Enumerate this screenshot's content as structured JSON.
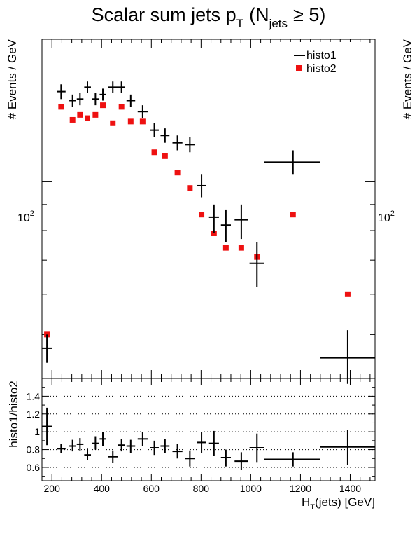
{
  "chart_data": [
    {
      "type": "scatter",
      "title": "Scalar sum jets p",
      "title_sub": "T",
      "title_paren_open": "(N",
      "title_paren_sub": "jets",
      "title_cond": "≥ 5)",
      "ylabel": "# Events / GeV",
      "ylabel_right": "# Events / GeV",
      "yscale": "log",
      "xlim": [
        160,
        1500
      ],
      "ylim": [
        41,
        190
      ],
      "ytick_labels": [
        {
          "value": 100,
          "base": "10",
          "exp": "2"
        }
      ],
      "legend": {
        "position": "top-right"
      },
      "series": [
        {
          "name": "histo1",
          "style": "errorbar-cross",
          "color": "#000000",
          "points": [
            {
              "x": 180,
              "xlo": 160,
              "xhi": 200,
              "y": 47,
              "ylo": 44,
              "yhi": 50
            },
            {
              "x": 237,
              "xlo": 220,
              "xhi": 255,
              "y": 150,
              "ylo": 145,
              "yhi": 155
            },
            {
              "x": 283,
              "xlo": 270,
              "xhi": 297,
              "y": 144,
              "ylo": 140,
              "yhi": 148
            },
            {
              "x": 313,
              "xlo": 300,
              "xhi": 327,
              "y": 145,
              "ylo": 141,
              "yhi": 149
            },
            {
              "x": 343,
              "xlo": 330,
              "xhi": 357,
              "y": 153,
              "ylo": 149,
              "yhi": 157
            },
            {
              "x": 375,
              "xlo": 362,
              "xhi": 388,
              "y": 145,
              "ylo": 141,
              "yhi": 149
            },
            {
              "x": 405,
              "xlo": 392,
              "xhi": 418,
              "y": 148,
              "ylo": 144,
              "yhi": 152
            },
            {
              "x": 445,
              "xlo": 425,
              "xhi": 465,
              "y": 153,
              "ylo": 149,
              "yhi": 157
            },
            {
              "x": 480,
              "xlo": 465,
              "xhi": 495,
              "y": 153,
              "ylo": 149,
              "yhi": 157
            },
            {
              "x": 517,
              "xlo": 500,
              "xhi": 535,
              "y": 144,
              "ylo": 140,
              "yhi": 148
            },
            {
              "x": 565,
              "xlo": 545,
              "xhi": 585,
              "y": 137,
              "ylo": 133,
              "yhi": 141
            },
            {
              "x": 612,
              "xlo": 595,
              "xhi": 630,
              "y": 126,
              "ylo": 122,
              "yhi": 130
            },
            {
              "x": 655,
              "xlo": 637,
              "xhi": 673,
              "y": 123,
              "ylo": 119,
              "yhi": 127
            },
            {
              "x": 705,
              "xlo": 685,
              "xhi": 725,
              "y": 119,
              "ylo": 115,
              "yhi": 123
            },
            {
              "x": 755,
              "xlo": 735,
              "xhi": 775,
              "y": 118,
              "ylo": 114,
              "yhi": 122
            },
            {
              "x": 802,
              "xlo": 785,
              "xhi": 820,
              "y": 98,
              "ylo": 93,
              "yhi": 103
            },
            {
              "x": 852,
              "xlo": 832,
              "xhi": 872,
              "y": 85,
              "ylo": 79,
              "yhi": 90
            },
            {
              "x": 900,
              "xlo": 880,
              "xhi": 920,
              "y": 82,
              "ylo": 76,
              "yhi": 88
            },
            {
              "x": 962,
              "xlo": 935,
              "xhi": 990,
              "y": 84,
              "ylo": 77,
              "yhi": 90
            },
            {
              "x": 1025,
              "xlo": 995,
              "xhi": 1055,
              "y": 69,
              "ylo": 62,
              "yhi": 76
            },
            {
              "x": 1170,
              "xlo": 1055,
              "xhi": 1280,
              "y": 109,
              "ylo": 103,
              "yhi": 115
            },
            {
              "x": 1390,
              "xlo": 1280,
              "xhi": 1500,
              "y": 45,
              "ylo": 40,
              "yhi": 51
            }
          ]
        },
        {
          "name": "histo2",
          "style": "square-marker",
          "color": "#ee1111",
          "points": [
            {
              "x": 180,
              "y": 50
            },
            {
              "x": 237,
              "y": 140
            },
            {
              "x": 283,
              "y": 132
            },
            {
              "x": 313,
              "y": 135
            },
            {
              "x": 343,
              "y": 133
            },
            {
              "x": 375,
              "y": 135
            },
            {
              "x": 405,
              "y": 141
            },
            {
              "x": 445,
              "y": 130
            },
            {
              "x": 480,
              "y": 140
            },
            {
              "x": 517,
              "y": 131
            },
            {
              "x": 565,
              "y": 131
            },
            {
              "x": 612,
              "y": 114
            },
            {
              "x": 655,
              "y": 112
            },
            {
              "x": 705,
              "y": 104
            },
            {
              "x": 755,
              "y": 97
            },
            {
              "x": 802,
              "y": 86
            },
            {
              "x": 852,
              "y": 79
            },
            {
              "x": 900,
              "y": 74
            },
            {
              "x": 962,
              "y": 74
            },
            {
              "x": 1025,
              "y": 71
            },
            {
              "x": 1170,
              "y": 86
            },
            {
              "x": 1390,
              "y": 60
            }
          ]
        }
      ]
    },
    {
      "type": "scatter",
      "ylabel": "histo1/histo2",
      "xlabel_main": "H",
      "xlabel_sub": "T",
      "xlabel_rest": "(jets) [GeV]",
      "xlim": [
        160,
        1500
      ],
      "ylim": [
        0.45,
        1.6
      ],
      "grid": "horizontal-dotted",
      "yticks": [
        {
          "value": 0.6,
          "label": "0.6"
        },
        {
          "value": 0.8,
          "label": "0.8"
        },
        {
          "value": 1.0,
          "label": "1"
        },
        {
          "value": 1.2,
          "label": "1.2"
        },
        {
          "value": 1.4,
          "label": "1.4"
        }
      ],
      "xticks": [
        {
          "value": 200,
          "label": "200"
        },
        {
          "value": 400,
          "label": "400"
        },
        {
          "value": 600,
          "label": "600"
        },
        {
          "value": 800,
          "label": "800"
        },
        {
          "value": 1000,
          "label": "1000"
        },
        {
          "value": 1200,
          "label": "1200"
        },
        {
          "value": 1400,
          "label": "1400"
        }
      ],
      "series": [
        {
          "name": "",
          "style": "errorbar-cross",
          "color": "#000000",
          "points": [
            {
              "x": 180,
              "xlo": 160,
              "xhi": 200,
              "y": 1.06,
              "ylo": 0.85,
              "yhi": 1.27
            },
            {
              "x": 237,
              "xlo": 220,
              "xhi": 255,
              "y": 0.81,
              "ylo": 0.76,
              "yhi": 0.86
            },
            {
              "x": 283,
              "xlo": 270,
              "xhi": 297,
              "y": 0.84,
              "ylo": 0.78,
              "yhi": 0.91
            },
            {
              "x": 313,
              "xlo": 300,
              "xhi": 327,
              "y": 0.86,
              "ylo": 0.79,
              "yhi": 0.93
            },
            {
              "x": 343,
              "xlo": 330,
              "xhi": 357,
              "y": 0.74,
              "ylo": 0.68,
              "yhi": 0.81
            },
            {
              "x": 375,
              "xlo": 362,
              "xhi": 388,
              "y": 0.87,
              "ylo": 0.8,
              "yhi": 0.95
            },
            {
              "x": 405,
              "xlo": 392,
              "xhi": 418,
              "y": 0.92,
              "ylo": 0.84,
              "yhi": 1.0
            },
            {
              "x": 445,
              "xlo": 425,
              "xhi": 465,
              "y": 0.72,
              "ylo": 0.65,
              "yhi": 0.79
            },
            {
              "x": 480,
              "xlo": 465,
              "xhi": 495,
              "y": 0.85,
              "ylo": 0.78,
              "yhi": 0.92
            },
            {
              "x": 517,
              "xlo": 500,
              "xhi": 535,
              "y": 0.84,
              "ylo": 0.76,
              "yhi": 0.91
            },
            {
              "x": 565,
              "xlo": 545,
              "xhi": 585,
              "y": 0.92,
              "ylo": 0.84,
              "yhi": 1.0
            },
            {
              "x": 612,
              "xlo": 595,
              "xhi": 630,
              "y": 0.82,
              "ylo": 0.74,
              "yhi": 0.9
            },
            {
              "x": 655,
              "xlo": 637,
              "xhi": 673,
              "y": 0.84,
              "ylo": 0.76,
              "yhi": 0.92
            },
            {
              "x": 705,
              "xlo": 685,
              "xhi": 725,
              "y": 0.78,
              "ylo": 0.7,
              "yhi": 0.86
            },
            {
              "x": 755,
              "xlo": 735,
              "xhi": 775,
              "y": 0.7,
              "ylo": 0.61,
              "yhi": 0.79
            },
            {
              "x": 802,
              "xlo": 785,
              "xhi": 820,
              "y": 0.88,
              "ylo": 0.76,
              "yhi": 1.0
            },
            {
              "x": 852,
              "xlo": 832,
              "xhi": 872,
              "y": 0.87,
              "ylo": 0.73,
              "yhi": 1.01
            },
            {
              "x": 900,
              "xlo": 880,
              "xhi": 920,
              "y": 0.71,
              "ylo": 0.61,
              "yhi": 0.8
            },
            {
              "x": 962,
              "xlo": 935,
              "xhi": 990,
              "y": 0.67,
              "ylo": 0.57,
              "yhi": 0.77
            },
            {
              "x": 1025,
              "xlo": 995,
              "xhi": 1055,
              "y": 0.82,
              "ylo": 0.66,
              "yhi": 0.98
            },
            {
              "x": 1170,
              "xlo": 1055,
              "xhi": 1280,
              "y": 0.69,
              "ylo": 0.61,
              "yhi": 0.77
            },
            {
              "x": 1390,
              "xlo": 1280,
              "xhi": 1500,
              "y": 0.83,
              "ylo": 0.63,
              "yhi": 1.02
            }
          ]
        }
      ]
    }
  ]
}
